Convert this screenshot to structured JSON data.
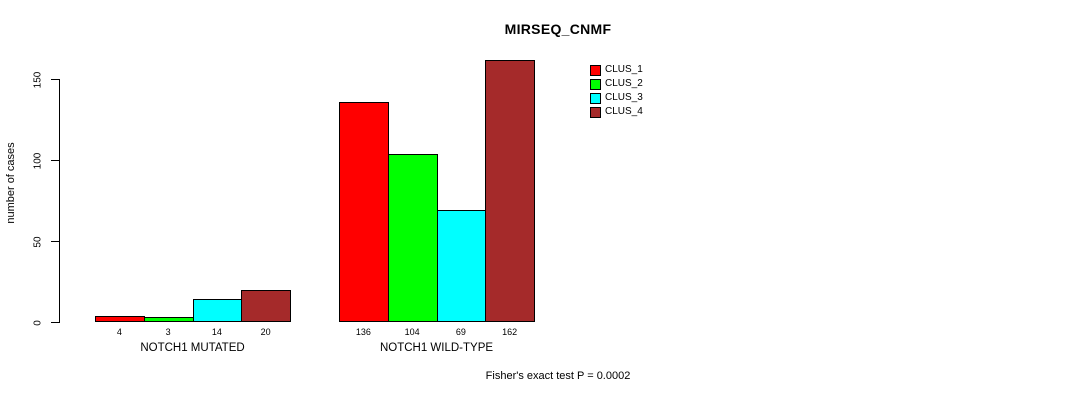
{
  "chart_data": {
    "type": "bar",
    "title": "MIRSEQ_CNMF",
    "ylabel": "number of cases",
    "xlabel": "",
    "yticks": [
      0,
      50,
      100,
      150
    ],
    "axis_range": [
      0,
      150
    ],
    "grid": false,
    "legend_position": "top-right",
    "categories": [
      "NOTCH1 MUTATED",
      "NOTCH1 WILD-TYPE"
    ],
    "series": [
      {
        "name": "CLUS_1",
        "color": "#ff0000",
        "values": [
          4,
          136
        ]
      },
      {
        "name": "CLUS_2",
        "color": "#00ff00",
        "values": [
          3,
          104
        ]
      },
      {
        "name": "CLUS_3",
        "color": "#00ffff",
        "values": [
          14,
          69
        ]
      },
      {
        "name": "CLUS_4",
        "color": "#a52a2a",
        "values": [
          20,
          162
        ]
      }
    ],
    "bar_value_labels": {
      "NOTCH1 MUTATED": [
        "4",
        "3",
        "14",
        "20"
      ],
      "NOTCH1 WILD-TYPE": [
        "136",
        "104",
        "69",
        "162"
      ]
    },
    "annotation": "Fisher's exact test P = 0.0002"
  }
}
